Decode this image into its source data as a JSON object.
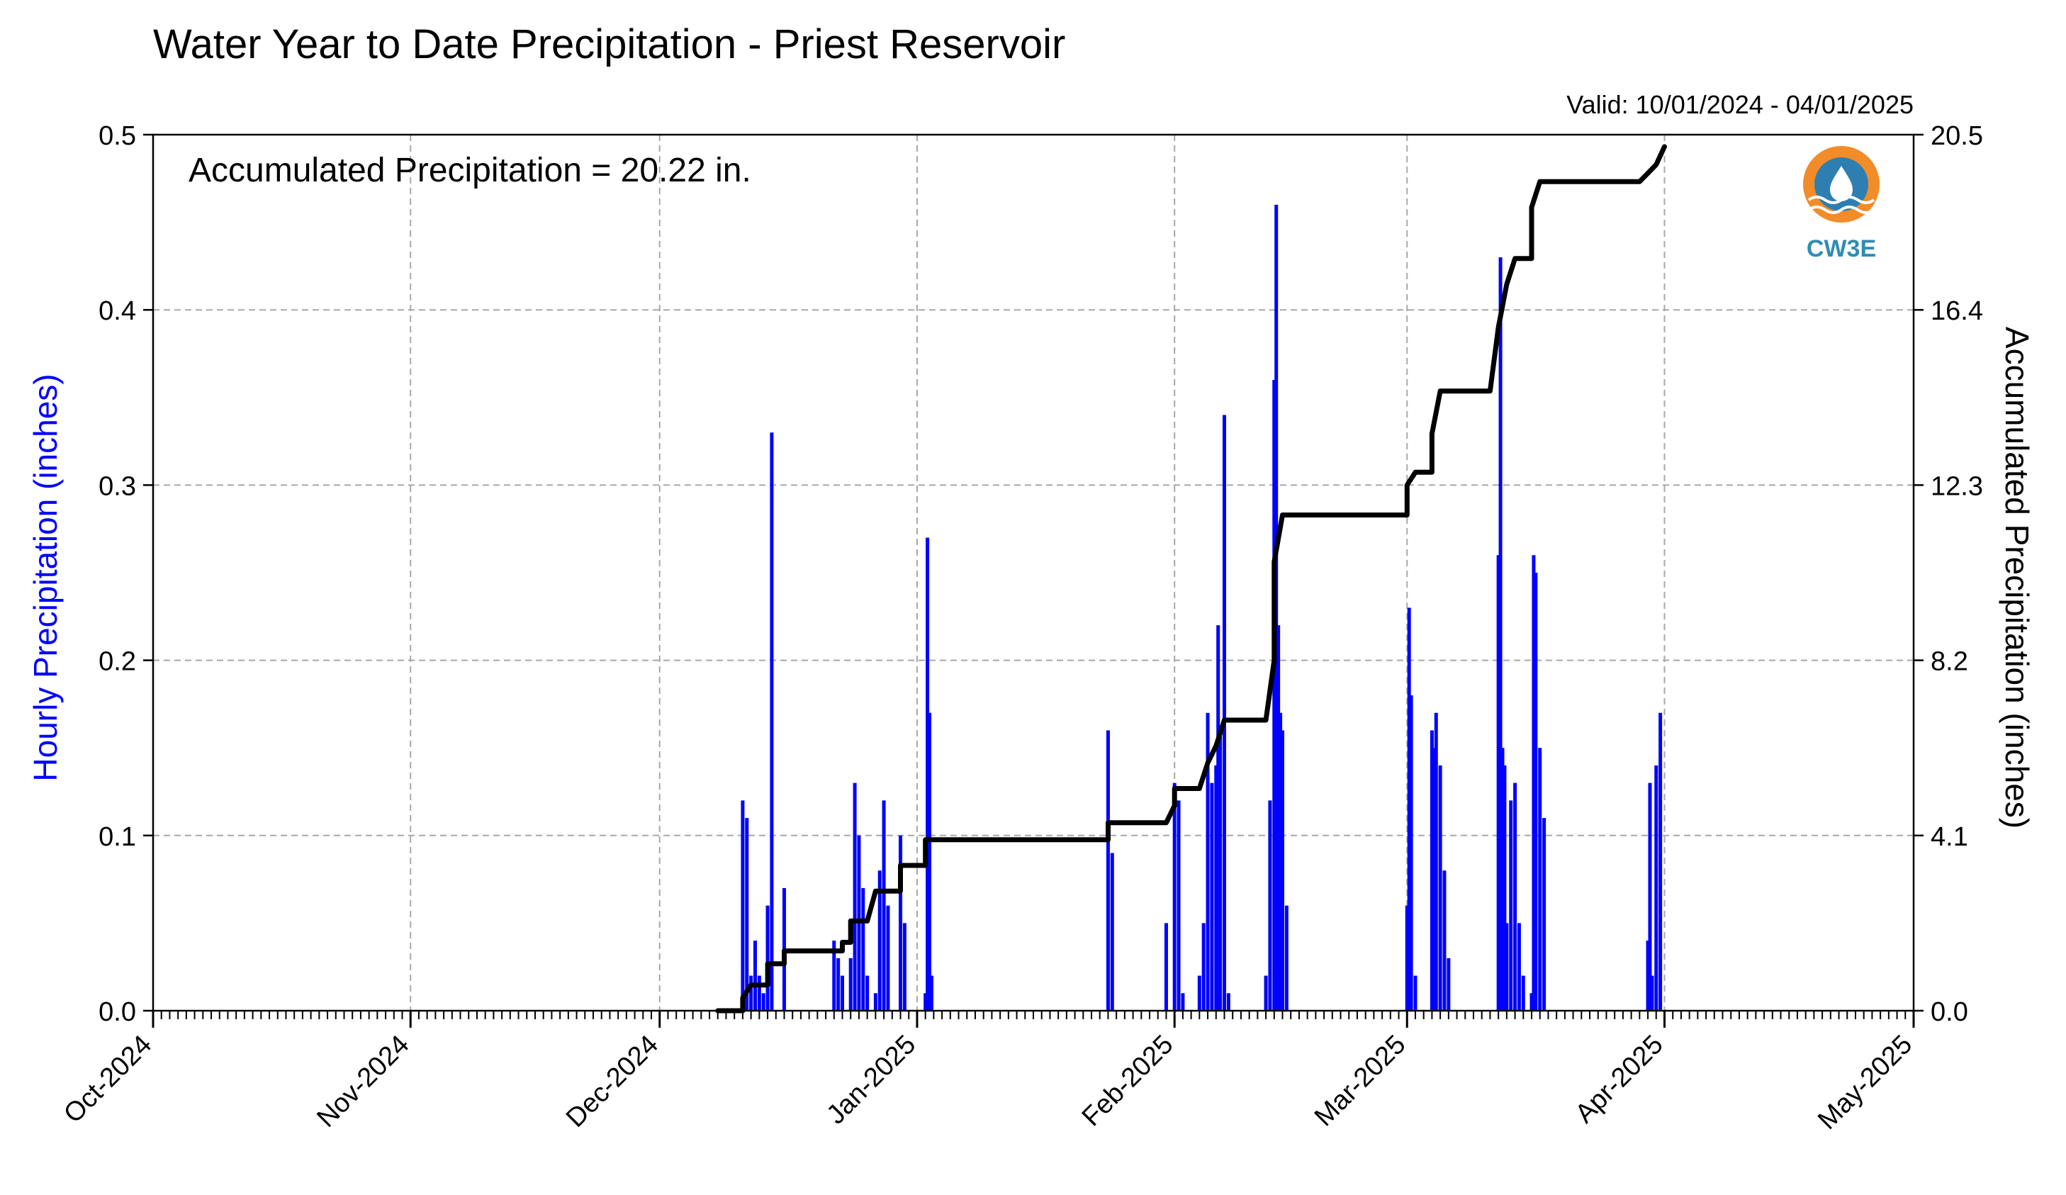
{
  "chart_data": {
    "type": "bar",
    "title": "Water Year to Date Precipitation - Priest Reservoir",
    "valid_range": "Valid: 10/01/2024 - 04/01/2025",
    "annotation": "Accumulated Precipitation = 20.22 in.",
    "logo_text": "CW3E",
    "grid": true,
    "x_axis": {
      "start": "2024-10-01",
      "end": "2025-05-01",
      "tick_labels": [
        "Oct-2024",
        "Nov-2024",
        "Dec-2024",
        "Jan-2025",
        "Feb-2025",
        "Mar-2025",
        "Apr-2025",
        "May-2025"
      ],
      "tick_dates": [
        "2024-10-01",
        "2024-11-01",
        "2024-12-01",
        "2025-01-01",
        "2025-02-01",
        "2025-03-01",
        "2025-04-01",
        "2025-05-01"
      ],
      "minor_ticks": "daily"
    },
    "y_left": {
      "label": "Hourly Precipitation (inches)",
      "range": [
        0,
        0.5
      ],
      "ticks": [
        "0.0",
        "0.1",
        "0.2",
        "0.3",
        "0.4",
        "0.5"
      ],
      "tick_values": [
        0,
        0.1,
        0.2,
        0.3,
        0.4,
        0.5
      ]
    },
    "y_right": {
      "label": "Accumulated Precipitation (inches)",
      "range": [
        0,
        20.5
      ],
      "ticks": [
        "0.0",
        "4.1",
        "8.2",
        "12.3",
        "16.4",
        "20.5"
      ],
      "tick_values": [
        0,
        4.1,
        8.2,
        12.3,
        16.4,
        20.5
      ]
    },
    "series": [
      {
        "type": "bar",
        "color": "#0000ff",
        "axis": "left",
        "points": [
          [
            "2024-12-11",
            0.12
          ],
          [
            "2024-12-11T12",
            0.11
          ],
          [
            "2024-12-12",
            0.02
          ],
          [
            "2024-12-12T12",
            0.04
          ],
          [
            "2024-12-13",
            0.02
          ],
          [
            "2024-12-13T12",
            0.01
          ],
          [
            "2024-12-14",
            0.06
          ],
          [
            "2024-12-14T12",
            0.33
          ],
          [
            "2024-12-16",
            0.07
          ],
          [
            "2024-12-22",
            0.04
          ],
          [
            "2024-12-22T12",
            0.03
          ],
          [
            "2024-12-23",
            0.02
          ],
          [
            "2024-12-24",
            0.03
          ],
          [
            "2024-12-24T12",
            0.13
          ],
          [
            "2024-12-25",
            0.1
          ],
          [
            "2024-12-25T12",
            0.07
          ],
          [
            "2024-12-26",
            0.02
          ],
          [
            "2024-12-27",
            0.01
          ],
          [
            "2024-12-27T12",
            0.08
          ],
          [
            "2024-12-28",
            0.12
          ],
          [
            "2024-12-28T12",
            0.06
          ],
          [
            "2024-12-30",
            0.1
          ],
          [
            "2024-12-30T12",
            0.05
          ],
          [
            "2025-01-02",
            0.01
          ],
          [
            "2025-01-02T06",
            0.27
          ],
          [
            "2025-01-02T12",
            0.17
          ],
          [
            "2025-01-02T18",
            0.02
          ],
          [
            "2025-01-24",
            0.16
          ],
          [
            "2025-01-24T12",
            0.09
          ],
          [
            "2025-01-31",
            0.05
          ],
          [
            "2025-02-01",
            0.13
          ],
          [
            "2025-02-01T12",
            0.12
          ],
          [
            "2025-02-02",
            0.01
          ],
          [
            "2025-02-04",
            0.02
          ],
          [
            "2025-02-04T12",
            0.05
          ],
          [
            "2025-02-05",
            0.17
          ],
          [
            "2025-02-05T12",
            0.13
          ],
          [
            "2025-02-06",
            0.14
          ],
          [
            "2025-02-06T06",
            0.22
          ],
          [
            "2025-02-06T12",
            0.16
          ],
          [
            "2025-02-07",
            0.34
          ],
          [
            "2025-02-07T12",
            0.01
          ],
          [
            "2025-02-12",
            0.02
          ],
          [
            "2025-02-12T12",
            0.12
          ],
          [
            "2025-02-13",
            0.36
          ],
          [
            "2025-02-13T06",
            0.46
          ],
          [
            "2025-02-13T12",
            0.22
          ],
          [
            "2025-02-13T18",
            0.17
          ],
          [
            "2025-02-14",
            0.16
          ],
          [
            "2025-02-14T12",
            0.06
          ],
          [
            "2025-03-01",
            0.06
          ],
          [
            "2025-03-01T06",
            0.23
          ],
          [
            "2025-03-01T12",
            0.18
          ],
          [
            "2025-03-02",
            0.02
          ],
          [
            "2025-03-04",
            0.16
          ],
          [
            "2025-03-04T06",
            0.15
          ],
          [
            "2025-03-04T12",
            0.17
          ],
          [
            "2025-03-05",
            0.14
          ],
          [
            "2025-03-05T12",
            0.08
          ],
          [
            "2025-03-06",
            0.03
          ],
          [
            "2025-03-12",
            0.26
          ],
          [
            "2025-03-12T06",
            0.43
          ],
          [
            "2025-03-12T12",
            0.15
          ],
          [
            "2025-03-12T18",
            0.14
          ],
          [
            "2025-03-13",
            0.05
          ],
          [
            "2025-03-13T12",
            0.12
          ],
          [
            "2025-03-14",
            0.13
          ],
          [
            "2025-03-14T12",
            0.05
          ],
          [
            "2025-03-15",
            0.02
          ],
          [
            "2025-03-16",
            0.01
          ],
          [
            "2025-03-16T06",
            0.26
          ],
          [
            "2025-03-16T12",
            0.25
          ],
          [
            "2025-03-17",
            0.15
          ],
          [
            "2025-03-17T12",
            0.11
          ],
          [
            "2025-03-30",
            0.04
          ],
          [
            "2025-03-30T06",
            0.13
          ],
          [
            "2025-03-30T12",
            0.02
          ],
          [
            "2025-03-31",
            0.14
          ],
          [
            "2025-03-31T12",
            0.17
          ]
        ]
      },
      {
        "type": "step-line",
        "color": "#000000",
        "axis": "right",
        "points": [
          [
            "2024-12-08",
            0
          ],
          [
            "2024-12-11",
            0
          ],
          [
            "2024-12-11",
            0.3
          ],
          [
            "2024-12-12",
            0.6
          ],
          [
            "2024-12-14",
            0.6
          ],
          [
            "2024-12-14",
            1.1
          ],
          [
            "2024-12-16",
            1.1
          ],
          [
            "2024-12-16",
            1.4
          ],
          [
            "2024-12-23",
            1.4
          ],
          [
            "2024-12-23",
            1.6
          ],
          [
            "2024-12-24",
            1.6
          ],
          [
            "2024-12-24",
            2.1
          ],
          [
            "2024-12-26",
            2.1
          ],
          [
            "2024-12-27",
            2.8
          ],
          [
            "2024-12-30",
            2.8
          ],
          [
            "2024-12-30",
            3.4
          ],
          [
            "2025-01-02",
            3.4
          ],
          [
            "2025-01-02",
            4.0
          ],
          [
            "2025-01-24",
            4.0
          ],
          [
            "2025-01-24",
            4.4
          ],
          [
            "2025-01-31",
            4.4
          ],
          [
            "2025-02-01",
            4.8
          ],
          [
            "2025-02-01",
            5.2
          ],
          [
            "2025-02-04",
            5.2
          ],
          [
            "2025-02-05",
            5.8
          ],
          [
            "2025-02-06",
            6.2
          ],
          [
            "2025-02-07",
            6.8
          ],
          [
            "2025-02-12",
            6.8
          ],
          [
            "2025-02-13",
            8.2
          ],
          [
            "2025-02-13",
            10.5
          ],
          [
            "2025-02-14",
            11.6
          ],
          [
            "2025-03-01",
            11.6
          ],
          [
            "2025-03-01",
            12.3
          ],
          [
            "2025-03-02",
            12.6
          ],
          [
            "2025-03-04",
            12.6
          ],
          [
            "2025-03-04",
            13.5
          ],
          [
            "2025-03-05",
            14.5
          ],
          [
            "2025-03-11",
            14.5
          ],
          [
            "2025-03-12",
            16.0
          ],
          [
            "2025-03-13",
            17.0
          ],
          [
            "2025-03-14",
            17.6
          ],
          [
            "2025-03-16",
            17.6
          ],
          [
            "2025-03-16",
            18.8
          ],
          [
            "2025-03-17",
            19.4
          ],
          [
            "2025-03-29",
            19.4
          ],
          [
            "2025-03-30",
            19.6
          ],
          [
            "2025-03-31",
            19.8
          ],
          [
            "2025-04-01",
            20.22
          ]
        ]
      }
    ]
  }
}
